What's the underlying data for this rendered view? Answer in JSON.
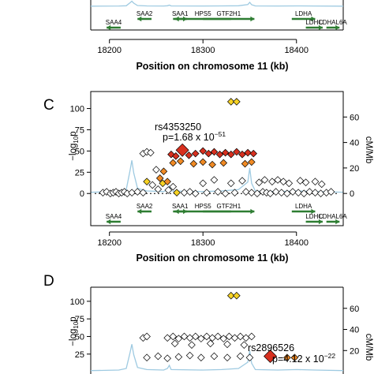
{
  "chart_data": [
    {
      "panel": "",
      "type": "scatter",
      "xlabel": "Position on chromosome 11 (kb)",
      "x_ticks": [
        "18200",
        "18300",
        "18400"
      ],
      "xlim": [
        18180,
        18450
      ],
      "genes_row1": [
        {
          "name": "SAA2",
          "start": 18245,
          "end": 18230
        },
        {
          "name": "SAA1",
          "start": 18268,
          "end": 18283
        },
        {
          "name": "HPS5",
          "start": 18330,
          "end": 18270
        },
        {
          "name": "GTF2H1",
          "start": 18300,
          "end": 18355
        },
        {
          "name": "LDHA",
          "start": 18395,
          "end": 18420
        }
      ],
      "genes_row2": [
        {
          "name": "SAA4",
          "start": 18212,
          "end": 18197
        },
        {
          "name": "LDHC",
          "start": 18410,
          "end": 18428
        },
        {
          "name": "LDHAL6A",
          "start": 18432,
          "end": 18446
        }
      ]
    },
    {
      "panel": "C",
      "type": "scatter",
      "ylabel_left": "−log10p",
      "ylabel_left_main": "−log",
      "ylabel_left_sub": "10",
      "ylabel_left_tail": "p",
      "ylabel_right": "cM/Mb",
      "y_ticks_left": [
        "0",
        "25",
        "50",
        "75",
        "100"
      ],
      "y_ticks_right": [
        "0",
        "20",
        "40",
        "60"
      ],
      "ylim": [
        -10,
        120
      ],
      "y2lim": [
        -6.7,
        80
      ],
      "xlabel": "Position on chromosome 11 (kb)",
      "x_ticks": [
        "18200",
        "18300",
        "18400"
      ],
      "xlim": [
        18180,
        18450
      ],
      "threshold_y": 0,
      "lead_snp": {
        "name": "rs4353250",
        "p_label": "p=1.68 x 10",
        "p_exp": "−51",
        "x": 18278,
        "y": 51
      },
      "colors": {
        "red": "#d7301f",
        "orange": "#f08a24",
        "yellow": "#f6d224",
        "white": "#ffffff",
        "recomb": "#9ecae1",
        "gene": "#2e7d32"
      },
      "points": [
        {
          "x": 18330,
          "y": 108,
          "c": "yellow"
        },
        {
          "x": 18336,
          "y": 108,
          "c": "yellow"
        },
        {
          "x": 18278,
          "y": 51,
          "c": "red"
        },
        {
          "x": 18266,
          "y": 46,
          "c": "red"
        },
        {
          "x": 18271,
          "y": 44,
          "c": "red"
        },
        {
          "x": 18285,
          "y": 45,
          "c": "red"
        },
        {
          "x": 18292,
          "y": 47,
          "c": "red"
        },
        {
          "x": 18300,
          "y": 50,
          "c": "red"
        },
        {
          "x": 18306,
          "y": 47,
          "c": "red"
        },
        {
          "x": 18312,
          "y": 49,
          "c": "red"
        },
        {
          "x": 18318,
          "y": 46,
          "c": "red"
        },
        {
          "x": 18324,
          "y": 48,
          "c": "red"
        },
        {
          "x": 18330,
          "y": 46,
          "c": "red"
        },
        {
          "x": 18336,
          "y": 49,
          "c": "red"
        },
        {
          "x": 18342,
          "y": 46,
          "c": "red"
        },
        {
          "x": 18348,
          "y": 48,
          "c": "red"
        },
        {
          "x": 18354,
          "y": 47,
          "c": "red"
        },
        {
          "x": 18268,
          "y": 36,
          "c": "orange"
        },
        {
          "x": 18276,
          "y": 38,
          "c": "orange"
        },
        {
          "x": 18290,
          "y": 35,
          "c": "orange"
        },
        {
          "x": 18300,
          "y": 37,
          "c": "orange"
        },
        {
          "x": 18310,
          "y": 34,
          "c": "orange"
        },
        {
          "x": 18322,
          "y": 36,
          "c": "orange"
        },
        {
          "x": 18345,
          "y": 35,
          "c": "orange"
        },
        {
          "x": 18352,
          "y": 37,
          "c": "orange"
        },
        {
          "x": 18258,
          "y": 26,
          "c": "orange"
        },
        {
          "x": 18254,
          "y": 18,
          "c": "orange"
        },
        {
          "x": 18262,
          "y": 14,
          "c": "orange"
        },
        {
          "x": 18240,
          "y": 14,
          "c": "yellow"
        },
        {
          "x": 18257,
          "y": 12,
          "c": "yellow"
        },
        {
          "x": 18272,
          "y": 1,
          "c": "yellow"
        },
        {
          "x": 18236,
          "y": 47,
          "c": "white"
        },
        {
          "x": 18240,
          "y": 49,
          "c": "white"
        },
        {
          "x": 18244,
          "y": 48,
          "c": "white"
        },
        {
          "x": 18250,
          "y": 28,
          "c": "white"
        },
        {
          "x": 18246,
          "y": 10,
          "c": "white"
        },
        {
          "x": 18252,
          "y": 5,
          "c": "white"
        },
        {
          "x": 18263,
          "y": 4,
          "c": "white"
        },
        {
          "x": 18268,
          "y": 8,
          "c": "white"
        },
        {
          "x": 18300,
          "y": 12,
          "c": "white"
        },
        {
          "x": 18312,
          "y": 16,
          "c": "white"
        },
        {
          "x": 18330,
          "y": 12,
          "c": "white"
        },
        {
          "x": 18342,
          "y": 15,
          "c": "white"
        },
        {
          "x": 18360,
          "y": 13,
          "c": "white"
        },
        {
          "x": 18366,
          "y": 16,
          "c": "white"
        },
        {
          "x": 18374,
          "y": 14,
          "c": "white"
        },
        {
          "x": 18380,
          "y": 16,
          "c": "white"
        },
        {
          "x": 18386,
          "y": 14,
          "c": "white"
        },
        {
          "x": 18392,
          "y": 12,
          "c": "white"
        },
        {
          "x": 18404,
          "y": 15,
          "c": "white"
        },
        {
          "x": 18410,
          "y": 13,
          "c": "white"
        },
        {
          "x": 18420,
          "y": 14,
          "c": "white"
        },
        {
          "x": 18427,
          "y": 11,
          "c": "white"
        },
        {
          "x": 18193,
          "y": 1,
          "c": "white"
        },
        {
          "x": 18197,
          "y": 2,
          "c": "white"
        },
        {
          "x": 18201,
          "y": 0,
          "c": "white"
        },
        {
          "x": 18204,
          "y": 1,
          "c": "white"
        },
        {
          "x": 18207,
          "y": 2,
          "c": "white"
        },
        {
          "x": 18210,
          "y": 0,
          "c": "white"
        },
        {
          "x": 18213,
          "y": 1,
          "c": "white"
        },
        {
          "x": 18216,
          "y": 2,
          "c": "white"
        },
        {
          "x": 18219,
          "y": 0,
          "c": "white"
        },
        {
          "x": 18224,
          "y": 1,
          "c": "white"
        },
        {
          "x": 18230,
          "y": 2,
          "c": "white"
        },
        {
          "x": 18236,
          "y": 1,
          "c": "white"
        },
        {
          "x": 18280,
          "y": 1,
          "c": "white"
        },
        {
          "x": 18286,
          "y": 2,
          "c": "white"
        },
        {
          "x": 18292,
          "y": 0,
          "c": "white"
        },
        {
          "x": 18304,
          "y": 1,
          "c": "white"
        },
        {
          "x": 18316,
          "y": 2,
          "c": "white"
        },
        {
          "x": 18324,
          "y": 0,
          "c": "white"
        },
        {
          "x": 18334,
          "y": 1,
          "c": "white"
        },
        {
          "x": 18346,
          "y": 2,
          "c": "white"
        },
        {
          "x": 18352,
          "y": 1,
          "c": "white"
        },
        {
          "x": 18358,
          "y": 0,
          "c": "white"
        },
        {
          "x": 18364,
          "y": 2,
          "c": "white"
        },
        {
          "x": 18368,
          "y": 1,
          "c": "white"
        },
        {
          "x": 18372,
          "y": 0,
          "c": "white"
        },
        {
          "x": 18378,
          "y": 2,
          "c": "white"
        },
        {
          "x": 18384,
          "y": 1,
          "c": "white"
        },
        {
          "x": 18390,
          "y": 0,
          "c": "white"
        },
        {
          "x": 18396,
          "y": 2,
          "c": "white"
        },
        {
          "x": 18402,
          "y": 1,
          "c": "white"
        },
        {
          "x": 18408,
          "y": 0,
          "c": "white"
        },
        {
          "x": 18414,
          "y": 2,
          "c": "white"
        },
        {
          "x": 18420,
          "y": 1,
          "c": "white"
        },
        {
          "x": 18426,
          "y": 0,
          "c": "white"
        },
        {
          "x": 18432,
          "y": 1,
          "c": "white"
        },
        {
          "x": 18437,
          "y": 2,
          "c": "white"
        }
      ],
      "recomb": [
        [
          18180,
          1
        ],
        [
          18210,
          1.5
        ],
        [
          18218,
          3
        ],
        [
          18222,
          18
        ],
        [
          18224,
          26
        ],
        [
          18226,
          16
        ],
        [
          18230,
          4
        ],
        [
          18240,
          2
        ],
        [
          18258,
          1.5
        ],
        [
          18262,
          3
        ],
        [
          18264,
          6
        ],
        [
          18266,
          2
        ],
        [
          18300,
          1.5
        ],
        [
          18320,
          2
        ],
        [
          18338,
          3
        ],
        [
          18348,
          9
        ],
        [
          18350,
          20
        ],
        [
          18352,
          8
        ],
        [
          18356,
          2
        ],
        [
          18380,
          1.5
        ],
        [
          18400,
          2
        ],
        [
          18420,
          1.5
        ],
        [
          18450,
          1
        ]
      ],
      "genes_row1": [
        {
          "name": "SAA2",
          "start": 18245,
          "end": 18230
        },
        {
          "name": "SAA1",
          "start": 18268,
          "end": 18283
        },
        {
          "name": "HPS5",
          "start": 18330,
          "end": 18270
        },
        {
          "name": "GTF2H1",
          "start": 18300,
          "end": 18355
        },
        {
          "name": "LDHA",
          "start": 18395,
          "end": 18420
        }
      ],
      "genes_row2": [
        {
          "name": "SAA4",
          "start": 18212,
          "end": 18197
        },
        {
          "name": "LDHC",
          "start": 18410,
          "end": 18428
        },
        {
          "name": "LDHAL6A",
          "start": 18432,
          "end": 18446
        }
      ]
    },
    {
      "panel": "D",
      "type": "scatter",
      "ylabel_left": "−log10p",
      "ylabel_left_main": "−log",
      "ylabel_left_sub": "10",
      "ylabel_left_tail": "p",
      "ylabel_right": "cM/Mb",
      "y_ticks_left": [
        "25",
        "50",
        "75",
        "100"
      ],
      "y_ticks_right": [
        "20",
        "40",
        "60"
      ],
      "ylim": [
        -10,
        120
      ],
      "y2lim": [
        -6.7,
        80
      ],
      "lead_snp": {
        "name": "rs2896526",
        "p_label": "p=4.12 x 10",
        "p_exp": "−22",
        "x": 18372,
        "y": 22
      },
      "points": [
        {
          "x": 18330,
          "y": 108,
          "c": "yellow"
        },
        {
          "x": 18336,
          "y": 108,
          "c": "yellow"
        },
        {
          "x": 18372,
          "y": 22,
          "c": "red"
        },
        {
          "x": 18390,
          "y": 20,
          "c": "orange"
        },
        {
          "x": 18398,
          "y": 20,
          "c": "orange"
        },
        {
          "x": 18236,
          "y": 48,
          "c": "white"
        },
        {
          "x": 18240,
          "y": 50,
          "c": "white"
        },
        {
          "x": 18262,
          "y": 48,
          "c": "white"
        },
        {
          "x": 18268,
          "y": 50,
          "c": "white"
        },
        {
          "x": 18274,
          "y": 47,
          "c": "white"
        },
        {
          "x": 18280,
          "y": 50,
          "c": "white"
        },
        {
          "x": 18286,
          "y": 48,
          "c": "white"
        },
        {
          "x": 18292,
          "y": 50,
          "c": "white"
        },
        {
          "x": 18298,
          "y": 47,
          "c": "white"
        },
        {
          "x": 18304,
          "y": 50,
          "c": "white"
        },
        {
          "x": 18310,
          "y": 48,
          "c": "white"
        },
        {
          "x": 18316,
          "y": 50,
          "c": "white"
        },
        {
          "x": 18322,
          "y": 47,
          "c": "white"
        },
        {
          "x": 18328,
          "y": 50,
          "c": "white"
        },
        {
          "x": 18334,
          "y": 48,
          "c": "white"
        },
        {
          "x": 18340,
          "y": 50,
          "c": "white"
        },
        {
          "x": 18346,
          "y": 48,
          "c": "white"
        },
        {
          "x": 18352,
          "y": 50,
          "c": "white"
        },
        {
          "x": 18270,
          "y": 40,
          "c": "white"
        },
        {
          "x": 18288,
          "y": 38,
          "c": "white"
        },
        {
          "x": 18308,
          "y": 40,
          "c": "white"
        },
        {
          "x": 18326,
          "y": 39,
          "c": "white"
        },
        {
          "x": 18344,
          "y": 38,
          "c": "white"
        },
        {
          "x": 18240,
          "y": 20,
          "c": "white"
        },
        {
          "x": 18252,
          "y": 22,
          "c": "white"
        },
        {
          "x": 18262,
          "y": 19,
          "c": "white"
        },
        {
          "x": 18274,
          "y": 21,
          "c": "white"
        },
        {
          "x": 18286,
          "y": 23,
          "c": "white"
        },
        {
          "x": 18298,
          "y": 20,
          "c": "white"
        },
        {
          "x": 18312,
          "y": 22,
          "c": "white"
        },
        {
          "x": 18326,
          "y": 20,
          "c": "white"
        },
        {
          "x": 18340,
          "y": 22,
          "c": "white"
        },
        {
          "x": 18350,
          "y": 20,
          "c": "white"
        }
      ],
      "recomb": [
        [
          18180,
          1
        ],
        [
          18210,
          1.5
        ],
        [
          18218,
          3
        ],
        [
          18222,
          18
        ],
        [
          18224,
          26
        ],
        [
          18226,
          16
        ],
        [
          18230,
          4
        ],
        [
          18240,
          2
        ],
        [
          18258,
          1.5
        ],
        [
          18262,
          3
        ],
        [
          18264,
          6
        ],
        [
          18266,
          2
        ],
        [
          18300,
          1.5
        ],
        [
          18320,
          2
        ],
        [
          18338,
          3
        ],
        [
          18348,
          9
        ],
        [
          18350,
          20
        ],
        [
          18352,
          8
        ],
        [
          18356,
          2
        ],
        [
          18380,
          1.5
        ],
        [
          18400,
          2
        ],
        [
          18420,
          1.5
        ],
        [
          18450,
          1
        ]
      ]
    }
  ]
}
